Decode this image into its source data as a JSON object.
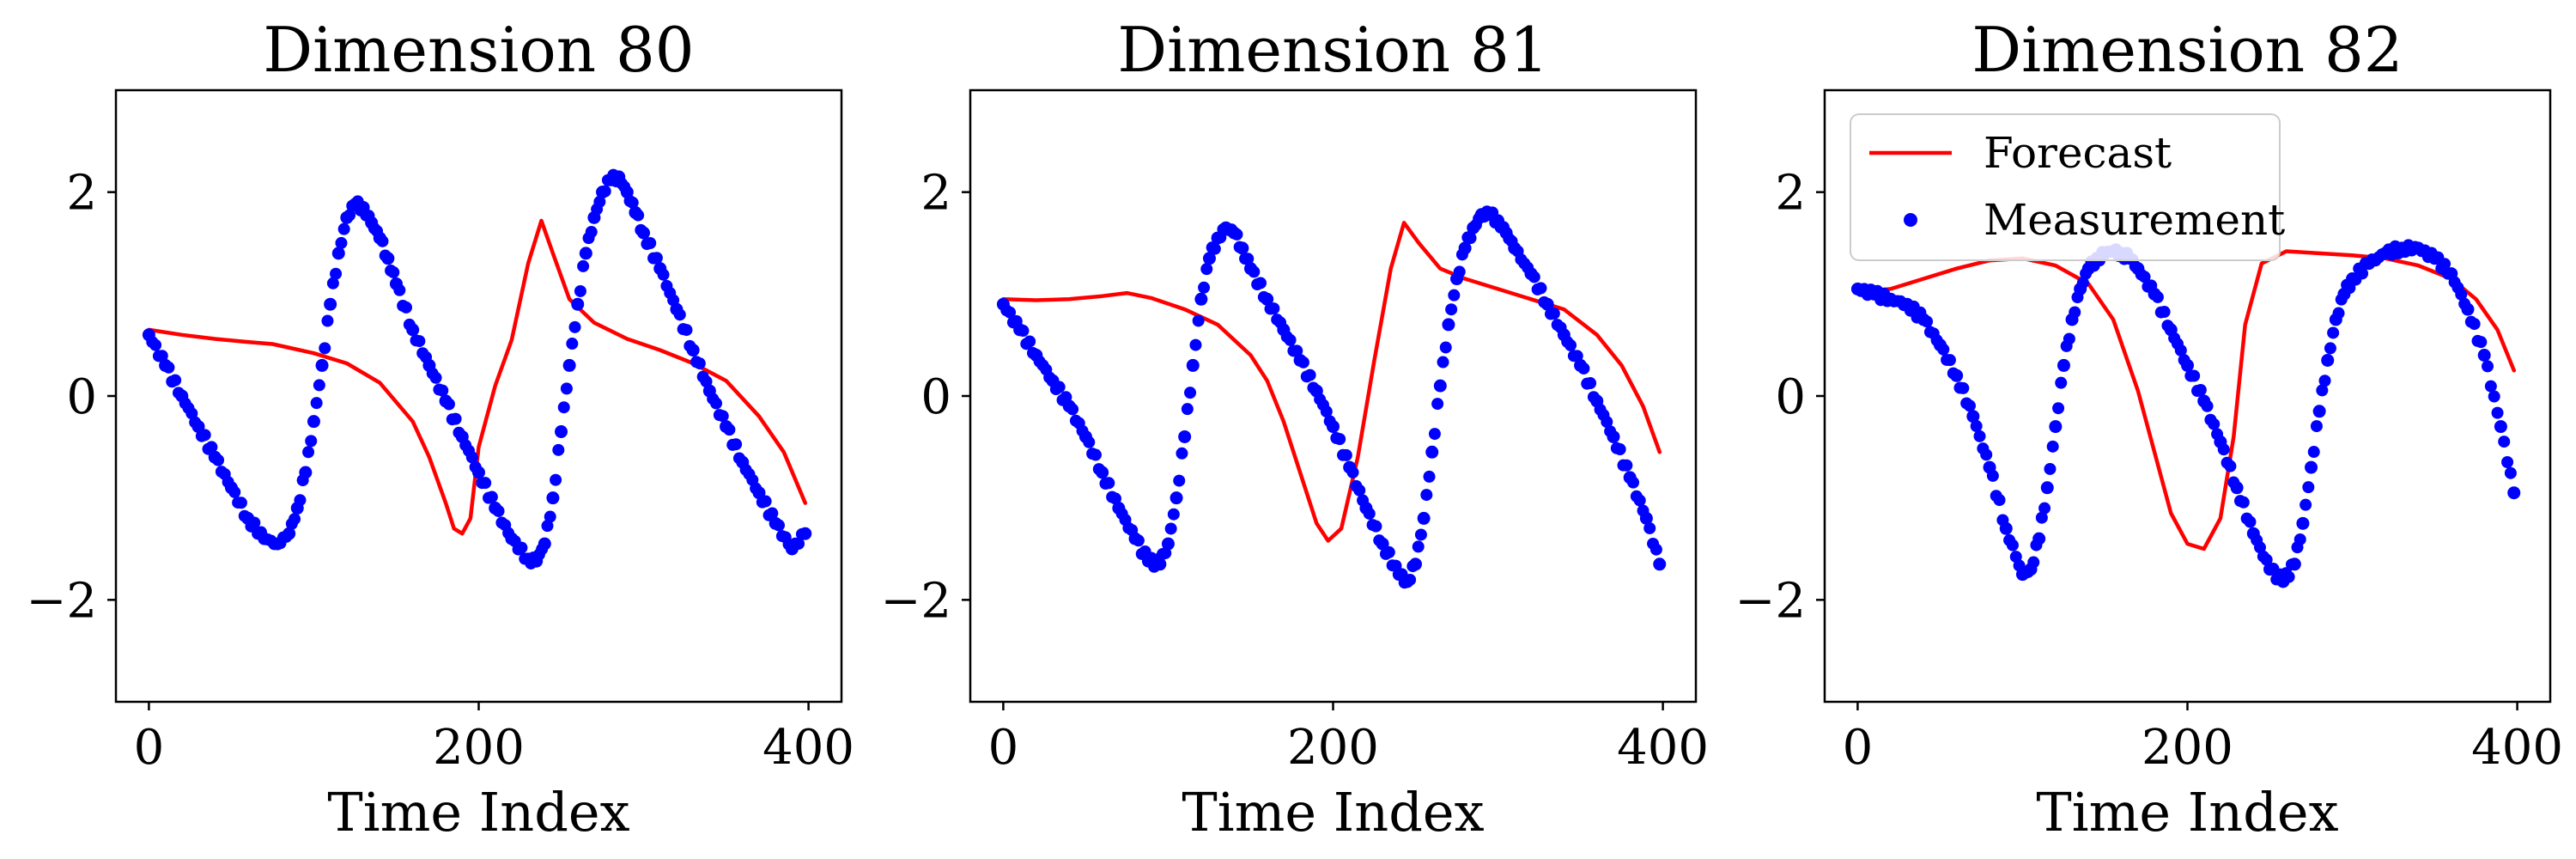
{
  "chart_data": [
    {
      "type": "line",
      "title": "Dimension 80",
      "xlabel": "Time Index",
      "ylabel": "",
      "xlim": [
        -20,
        420
      ],
      "ylim": [
        -3,
        3
      ],
      "xticks": [
        0,
        200,
        400
      ],
      "yticks": [
        -2,
        0,
        2
      ],
      "xtick_labels": [
        "0",
        "200",
        "400"
      ],
      "ytick_labels": [
        "−2",
        "0",
        "2"
      ],
      "legend": null,
      "series": [
        {
          "role": "forecast",
          "style": "line",
          "color": "#ff0000",
          "x": [
            0,
            20,
            40,
            60,
            75,
            100,
            120,
            140,
            160,
            170,
            180,
            185,
            190,
            195,
            200,
            210,
            220,
            230,
            238,
            245,
            255,
            270,
            290,
            310,
            330,
            350,
            370,
            385,
            398
          ],
          "y": [
            0.65,
            0.6,
            0.56,
            0.53,
            0.51,
            0.42,
            0.32,
            0.13,
            -0.25,
            -0.6,
            -1.05,
            -1.3,
            -1.35,
            -1.2,
            -0.5,
            0.1,
            0.55,
            1.3,
            1.72,
            1.4,
            0.95,
            0.72,
            0.56,
            0.45,
            0.32,
            0.15,
            -0.2,
            -0.55,
            -1.05
          ]
        },
        {
          "role": "measurement",
          "style": "scatter",
          "color": "#0000ff",
          "x": [
            0,
            10,
            20,
            30,
            40,
            50,
            60,
            70,
            78,
            85,
            90,
            95,
            100,
            105,
            110,
            115,
            120,
            125,
            130,
            135,
            140,
            145,
            150,
            160,
            170,
            180,
            190,
            200,
            210,
            220,
            230,
            235,
            240,
            245,
            250,
            255,
            260,
            265,
            270,
            275,
            280,
            285,
            290,
            295,
            300,
            310,
            320,
            330,
            340,
            350,
            360,
            370,
            380,
            390,
            398
          ],
          "y": [
            0.6,
            0.3,
            0.0,
            -0.3,
            -0.6,
            -0.9,
            -1.2,
            -1.4,
            -1.45,
            -1.35,
            -1.1,
            -0.75,
            -0.25,
            0.3,
            0.9,
            1.4,
            1.75,
            1.88,
            1.85,
            1.7,
            1.55,
            1.35,
            1.1,
            0.65,
            0.3,
            -0.05,
            -0.4,
            -0.75,
            -1.1,
            -1.4,
            -1.6,
            -1.62,
            -1.45,
            -1.0,
            -0.35,
            0.3,
            0.9,
            1.4,
            1.75,
            2.0,
            2.12,
            2.15,
            2.0,
            1.8,
            1.6,
            1.25,
            0.85,
            0.45,
            0.05,
            -0.3,
            -0.65,
            -0.95,
            -1.25,
            -1.5,
            -1.35
          ]
        }
      ]
    },
    {
      "type": "line",
      "title": "Dimension 81",
      "xlabel": "Time Index",
      "ylabel": "",
      "xlim": [
        -20,
        420
      ],
      "ylim": [
        -3,
        3
      ],
      "xticks": [
        0,
        200,
        400
      ],
      "yticks": [
        -2,
        0,
        2
      ],
      "xtick_labels": [
        "0",
        "200",
        "400"
      ],
      "ytick_labels": [
        "−2",
        "0",
        "2"
      ],
      "legend": null,
      "series": [
        {
          "role": "forecast",
          "style": "line",
          "color": "#ff0000",
          "x": [
            0,
            20,
            40,
            60,
            75,
            90,
            110,
            130,
            150,
            160,
            170,
            180,
            190,
            197,
            205,
            215,
            225,
            235,
            243,
            252,
            265,
            280,
            300,
            320,
            340,
            360,
            375,
            388,
            398
          ],
          "y": [
            0.95,
            0.94,
            0.95,
            0.98,
            1.01,
            0.96,
            0.85,
            0.7,
            0.4,
            0.15,
            -0.25,
            -0.75,
            -1.25,
            -1.42,
            -1.3,
            -0.6,
            0.35,
            1.25,
            1.7,
            1.5,
            1.25,
            1.15,
            1.05,
            0.95,
            0.85,
            0.6,
            0.3,
            -0.1,
            -0.55
          ]
        },
        {
          "role": "measurement",
          "style": "scatter",
          "color": "#0000ff",
          "x": [
            0,
            10,
            20,
            30,
            40,
            50,
            60,
            70,
            80,
            88,
            95,
            100,
            105,
            110,
            115,
            120,
            125,
            130,
            135,
            140,
            145,
            150,
            160,
            170,
            180,
            190,
            200,
            210,
            220,
            230,
            240,
            245,
            250,
            255,
            260,
            265,
            270,
            275,
            280,
            285,
            290,
            295,
            300,
            305,
            310,
            320,
            330,
            340,
            350,
            360,
            370,
            380,
            390,
            398
          ],
          "y": [
            0.9,
            0.65,
            0.4,
            0.15,
            -0.1,
            -0.4,
            -0.75,
            -1.1,
            -1.4,
            -1.62,
            -1.65,
            -1.45,
            -1.0,
            -0.4,
            0.3,
            0.95,
            1.35,
            1.55,
            1.65,
            1.6,
            1.45,
            1.25,
            0.95,
            0.65,
            0.35,
            0.05,
            -0.3,
            -0.7,
            -1.1,
            -1.45,
            -1.75,
            -1.82,
            -1.65,
            -1.2,
            -0.55,
            0.1,
            0.7,
            1.15,
            1.45,
            1.65,
            1.78,
            1.78,
            1.72,
            1.6,
            1.45,
            1.2,
            0.9,
            0.6,
            0.3,
            -0.05,
            -0.4,
            -0.8,
            -1.2,
            -1.65
          ]
        }
      ]
    },
    {
      "type": "line",
      "title": "Dimension 82",
      "xlabel": "Time Index",
      "ylabel": "",
      "xlim": [
        -20,
        420
      ],
      "ylim": [
        -3,
        3
      ],
      "xticks": [
        0,
        200,
        400
      ],
      "yticks": [
        -2,
        0,
        2
      ],
      "xtick_labels": [
        "0",
        "200",
        "400"
      ],
      "ytick_labels": [
        "−2",
        "0",
        "2"
      ],
      "legend": {
        "placement": "upper-left",
        "entries": [
          {
            "label": "Forecast",
            "marker": "line",
            "color": "#ff0000"
          },
          {
            "label": "Measurement",
            "marker": "dot",
            "color": "#0000ff"
          }
        ]
      },
      "series": [
        {
          "role": "forecast",
          "style": "line",
          "color": "#ff0000",
          "x": [
            0,
            20,
            40,
            60,
            80,
            100,
            120,
            140,
            155,
            170,
            180,
            190,
            200,
            210,
            220,
            228,
            235,
            245,
            260,
            280,
            300,
            320,
            340,
            360,
            375,
            388,
            398
          ],
          "y": [
            1.02,
            1.05,
            1.15,
            1.25,
            1.33,
            1.35,
            1.28,
            1.1,
            0.75,
            0.05,
            -0.55,
            -1.15,
            -1.45,
            -1.5,
            -1.2,
            -0.4,
            0.7,
            1.3,
            1.42,
            1.4,
            1.38,
            1.35,
            1.28,
            1.15,
            0.95,
            0.65,
            0.25
          ]
        },
        {
          "role": "measurement",
          "style": "scatter",
          "color": "#0000ff",
          "x": [
            0,
            10,
            20,
            30,
            40,
            50,
            60,
            70,
            80,
            90,
            100,
            105,
            110,
            115,
            120,
            125,
            130,
            135,
            140,
            145,
            150,
            155,
            160,
            165,
            170,
            180,
            190,
            200,
            210,
            220,
            230,
            240,
            250,
            258,
            265,
            270,
            275,
            280,
            285,
            290,
            295,
            300,
            310,
            320,
            330,
            340,
            350,
            360,
            370,
            380,
            390,
            398
          ],
          "y": [
            1.05,
            1.0,
            0.95,
            0.9,
            0.75,
            0.5,
            0.2,
            -0.2,
            -0.7,
            -1.3,
            -1.75,
            -1.7,
            -1.4,
            -0.9,
            -0.3,
            0.3,
            0.75,
            1.05,
            1.25,
            1.35,
            1.4,
            1.42,
            1.4,
            1.35,
            1.25,
            1.0,
            0.65,
            0.3,
            -0.05,
            -0.45,
            -0.9,
            -1.35,
            -1.7,
            -1.82,
            -1.65,
            -1.25,
            -0.7,
            -0.15,
            0.35,
            0.75,
            1.0,
            1.15,
            1.3,
            1.4,
            1.45,
            1.45,
            1.35,
            1.2,
            0.85,
            0.4,
            -0.3,
            -0.95
          ]
        }
      ]
    }
  ]
}
